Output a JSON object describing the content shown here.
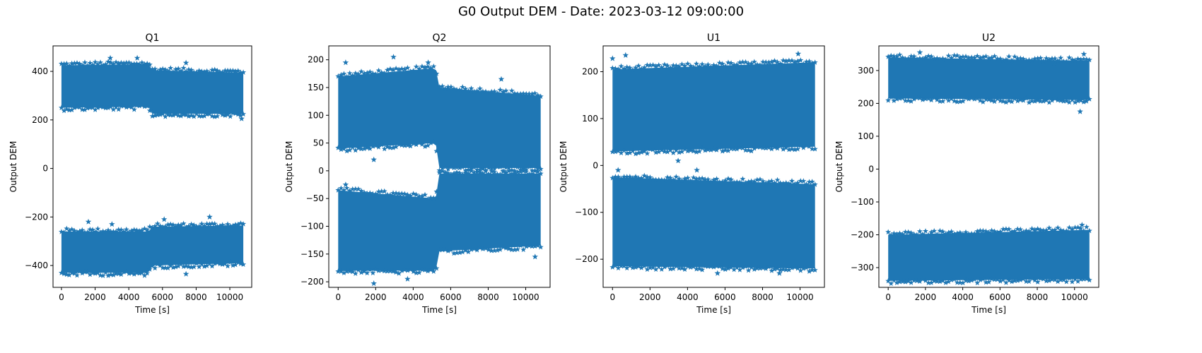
{
  "figure": {
    "title": "G0 Output DEM - Date: 2023-03-12 09:00:00"
  },
  "style": {
    "marker_color": "#1f77b4",
    "marker": "star",
    "axis_color": "#000000"
  },
  "chart_data": [
    {
      "type": "scatter",
      "title": "Q1",
      "xlabel": "Time [s]",
      "ylabel": "Output DEM",
      "xlim": [
        -500,
        11300
      ],
      "ylim": [
        -490,
        505
      ],
      "xticks": [
        0,
        2000,
        4000,
        6000,
        8000,
        10000
      ],
      "yticks": [
        -400,
        -200,
        0,
        200,
        400
      ],
      "x_range": [
        0,
        10800
      ],
      "bands": [
        {
          "name": "upper",
          "x": [
            0,
            5200,
            5300,
            10800
          ],
          "low": [
            250,
            255,
            225,
            225
          ],
          "high": [
            425,
            430,
            405,
            395
          ]
        },
        {
          "name": "lower",
          "x": [
            0,
            5200,
            5300,
            10800
          ],
          "low": [
            -430,
            -430,
            -400,
            -390
          ],
          "high": [
            -260,
            -260,
            -240,
            -235
          ]
        }
      ],
      "outliers": [
        [
          1600,
          -220
        ],
        [
          3000,
          -230
        ],
        [
          6100,
          -210
        ],
        [
          8800,
          -200
        ],
        [
          2900,
          455
        ],
        [
          4500,
          455
        ],
        [
          7400,
          435
        ],
        [
          10700,
          205
        ],
        [
          7400,
          -435
        ]
      ]
    },
    {
      "type": "scatter",
      "title": "Q2",
      "xlabel": "Time [s]",
      "ylabel": "Output DEM",
      "xlim": [
        -500,
        11300
      ],
      "ylim": [
        -210,
        225
      ],
      "xticks": [
        0,
        2000,
        4000,
        6000,
        8000,
        10000
      ],
      "yticks": [
        -200,
        -150,
        -100,
        -50,
        0,
        50,
        100,
        150,
        200
      ],
      "x_range": [
        0,
        10800
      ],
      "bands": [
        {
          "name": "upper",
          "x": [
            0,
            5200,
            5400,
            10800
          ],
          "low": [
            40,
            50,
            5,
            5
          ],
          "high": [
            170,
            185,
            150,
            135
          ]
        },
        {
          "name": "lower",
          "x": [
            0,
            5200,
            5400,
            10800
          ],
          "low": [
            -180,
            -180,
            -145,
            -135
          ],
          "high": [
            -35,
            -50,
            -5,
            -5
          ]
        }
      ],
      "outliers": [
        [
          2950,
          205
        ],
        [
          4800,
          195
        ],
        [
          400,
          195
        ],
        [
          1900,
          20
        ],
        [
          1900,
          -203
        ],
        [
          3700,
          -195
        ],
        [
          8700,
          165
        ],
        [
          400,
          -25
        ],
        [
          10500,
          -155
        ]
      ]
    },
    {
      "type": "scatter",
      "title": "U1",
      "xlabel": "Time [s]",
      "ylabel": "Output DEM",
      "xlim": [
        -500,
        11300
      ],
      "ylim": [
        -260,
        255
      ],
      "xticks": [
        0,
        2000,
        4000,
        6000,
        8000,
        10000
      ],
      "yticks": [
        -200,
        -100,
        0,
        100,
        200
      ],
      "x_range": [
        0,
        10800
      ],
      "bands": [
        {
          "name": "upper",
          "x": [
            0,
            10800
          ],
          "low": [
            30,
            40
          ],
          "high": [
            205,
            220
          ]
        },
        {
          "name": "lower",
          "x": [
            0,
            10800
          ],
          "low": [
            -215,
            -220
          ],
          "high": [
            -25,
            -40
          ]
        }
      ],
      "outliers": [
        [
          700,
          235
        ],
        [
          0,
          228
        ],
        [
          9900,
          238
        ],
        [
          3500,
          10
        ],
        [
          4500,
          -10
        ],
        [
          5600,
          -230
        ],
        [
          8900,
          -230
        ],
        [
          300,
          -10
        ]
      ]
    },
    {
      "type": "scatter",
      "title": "U2",
      "xlabel": "Time [s]",
      "ylabel": "Output DEM",
      "xlim": [
        -500,
        11300
      ],
      "ylim": [
        -360,
        375
      ],
      "xticks": [
        0,
        2000,
        4000,
        6000,
        8000,
        10000
      ],
      "yticks": [
        -300,
        -200,
        -100,
        0,
        100,
        200,
        300
      ],
      "x_range": [
        0,
        10800
      ],
      "bands": [
        {
          "name": "upper",
          "x": [
            0,
            10800
          ],
          "low": [
            215,
            210
          ],
          "high": [
            340,
            330
          ]
        },
        {
          "name": "lower",
          "x": [
            0,
            10800
          ],
          "low": [
            -340,
            -335
          ],
          "high": [
            -200,
            -185
          ]
        }
      ],
      "outliers": [
        [
          1700,
          355
        ],
        [
          10500,
          350
        ],
        [
          8900,
          320
        ],
        [
          10400,
          -170
        ],
        [
          10300,
          175
        ]
      ]
    }
  ]
}
